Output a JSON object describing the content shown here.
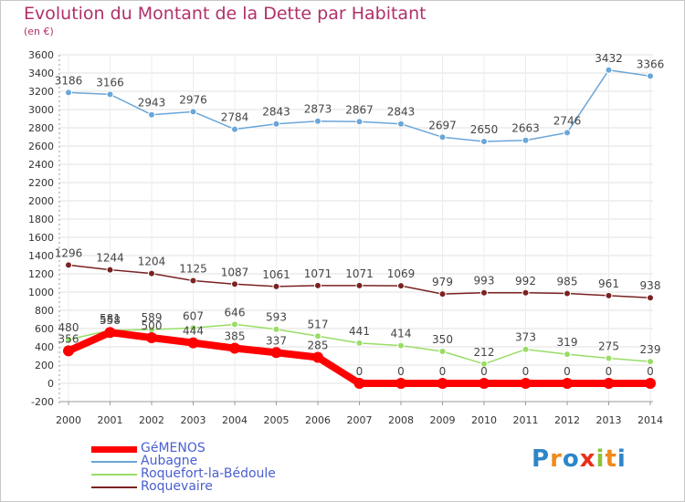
{
  "chart_data": {
    "type": "line",
    "title": "Evolution du Montant de la Dette par Habitant",
    "subtitle": "(en €)",
    "x": [
      "2000",
      "2001",
      "2002",
      "2003",
      "2004",
      "2005",
      "2006",
      "2007",
      "2008",
      "2009",
      "2010",
      "2011",
      "2012",
      "2013",
      "2014"
    ],
    "yticks": [
      -200,
      0,
      200,
      400,
      600,
      800,
      1000,
      1200,
      1400,
      1600,
      1800,
      2000,
      2200,
      2400,
      2600,
      2800,
      3000,
      3200,
      3400,
      3600
    ],
    "ylim": [
      -200,
      3600
    ],
    "grid": true,
    "legend_position": "bottom-left",
    "series": [
      {
        "name": "GéMENOS",
        "color": "#ff0000",
        "values": [
          356,
          558,
          500,
          444,
          385,
          337,
          285,
          0,
          0,
          0,
          0,
          0,
          0,
          0,
          0
        ]
      },
      {
        "name": "Aubagne",
        "color": "#6aa6d8",
        "values": [
          3186,
          3166,
          2943,
          2976,
          2784,
          2843,
          2873,
          2867,
          2843,
          2697,
          2650,
          2663,
          2746,
          3432,
          3366
        ]
      },
      {
        "name": "Roquefort-la-Bédoule",
        "color": "#99dd66",
        "values": [
          480,
          581,
          589,
          607,
          646,
          593,
          517,
          441,
          414,
          350,
          212,
          373,
          319,
          275,
          239
        ]
      },
      {
        "name": "Roquevaire",
        "color": "#7a2222",
        "values": [
          1296,
          1244,
          1204,
          1125,
          1087,
          1061,
          1071,
          1071,
          1069,
          979,
          993,
          992,
          985,
          961,
          938
        ]
      }
    ]
  },
  "brand": {
    "text": "Proxiti"
  }
}
